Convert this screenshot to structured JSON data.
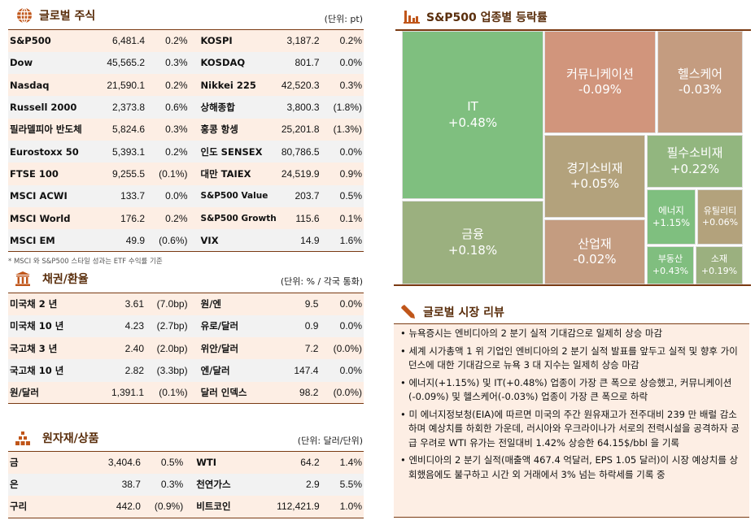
{
  "global_stocks": {
    "title": "글로벌 주식",
    "unit": "(단위: pt)",
    "icon": "globe-icon",
    "rows": [
      [
        "S&P500",
        "6,481.4",
        "0.2%",
        "KOSPI",
        "3,187.2",
        "0.2%"
      ],
      [
        "Dow",
        "45,565.2",
        "0.3%",
        "KOSDAQ",
        "801.7",
        "0.0%"
      ],
      [
        "Nasdaq",
        "21,590.1",
        "0.2%",
        "Nikkei 225",
        "42,520.3",
        "0.3%"
      ],
      [
        "Russell 2000",
        "2,373.8",
        "0.6%",
        "상해종합",
        "3,800.3",
        "(1.8%)"
      ],
      [
        "필라델피아 반도체",
        "5,824.6",
        "0.3%",
        "홍콩 항셍",
        "25,201.8",
        "(1.3%)"
      ],
      [
        "Eurostoxx 50",
        "5,393.1",
        "0.2%",
        "인도 SENSEX",
        "80,786.5",
        "0.0%"
      ],
      [
        "FTSE 100",
        "9,255.5",
        "(0.1%)",
        "대만 TAIEX",
        "24,519.9",
        "0.9%"
      ],
      [
        "MSCI ACWI",
        "133.7",
        "0.0%",
        "S&P500 Value",
        "203.7",
        "0.5%"
      ],
      [
        "MSCI World",
        "176.2",
        "0.2%",
        "S&P500 Growth",
        "115.6",
        "0.1%"
      ],
      [
        "MSCI EM",
        "49.9",
        "(0.6%)",
        "VIX",
        "14.9",
        "1.6%"
      ]
    ],
    "note": "* MSCI 와 S&P500 스타일 성과는 ETF 수익률 기준"
  },
  "bonds_fx": {
    "title": "채권/환율",
    "unit": "(단위: % / 각국 통화)",
    "icon": "bank-icon",
    "rows": [
      [
        "미국채 2 년",
        "3.61",
        "(7.0bp)",
        "원/엔",
        "9.5",
        "0.0%"
      ],
      [
        "미국채 10 년",
        "4.23",
        "(2.7bp)",
        "유로/달러",
        "0.9",
        "0.0%"
      ],
      [
        "국고채 3 년",
        "2.40",
        "(2.0bp)",
        "위안/달러",
        "7.2",
        "(0.0%)"
      ],
      [
        "국고채 10 년",
        "2.82",
        "(3.3bp)",
        "엔/달러",
        "147.4",
        "0.0%"
      ],
      [
        "원/달러",
        "1,391.1",
        "(0.1%)",
        "달러 인덱스",
        "98.2",
        "(0.0%)"
      ]
    ]
  },
  "commodities": {
    "title": "원자재/상품",
    "unit": "(단위: 달러/단위)",
    "icon": "gold-bars-icon",
    "rows": [
      [
        "금",
        "3,404.6",
        "0.5%",
        "WTI",
        "64.2",
        "1.4%"
      ],
      [
        "은",
        "38.7",
        "0.3%",
        "천연가스",
        "2.9",
        "5.5%"
      ],
      [
        "구리",
        "442.0",
        "(0.9%)",
        "비트코인",
        "112,421.9",
        "1.0%"
      ]
    ]
  },
  "sector": {
    "title": "S&P500 업종별 등락률",
    "icon": "bar-chart-icon",
    "cells": [
      {
        "name": "IT",
        "value": "+0.48%",
        "color": "#7fbf7f"
      },
      {
        "name": "금융",
        "value": "+0.18%",
        "color": "#9bb07f"
      },
      {
        "name": "커뮤니케이션",
        "value": "-0.09%",
        "color": "#d1957c"
      },
      {
        "name": "헬스케어",
        "value": "-0.03%",
        "color": "#c49c80"
      },
      {
        "name": "경기소비재",
        "value": "+0.05%",
        "color": "#b3a27c"
      },
      {
        "name": "산업재",
        "value": "-0.02%",
        "color": "#c49c80"
      },
      {
        "name": "필수소비재",
        "value": "+0.22%",
        "color": "#92b67f"
      },
      {
        "name": "에너지",
        "value": "+1.15%",
        "color": "#7fbf7f"
      },
      {
        "name": "유틸리티",
        "value": "+0.06%",
        "color": "#b3a27c"
      },
      {
        "name": "부동산",
        "value": "+0.43%",
        "color": "#80be7f"
      },
      {
        "name": "소재",
        "value": "+0.19%",
        "color": "#9bb07f"
      }
    ]
  },
  "review": {
    "title": "글로벌 시장 리뷰",
    "icon": "pen-icon",
    "items": [
      "뉴욕증시는 엔비디아의 2 분기 실적 기대감으로 일제히 상승 마감",
      "세계 시가총액 1 위 기업인 엔비디아의 2 분기 실적 발표를 앞두고 실적 및 향후 가이던스에 대한 기대감으로 뉴욕 3 대 지수는 일제히 상승 마감",
      "에너지(+1.15%) 및 IT(+0.48%) 업종이 가장 큰 폭으로 상승했고, 커뮤니케이션(-0.09%) 및 헬스케어(-0.03%) 업종이 가장 큰 폭으로 하락",
      "미 에너지정보청(EIA)에 따르면 미국의 주간 원유재고가 전주대비 239 만 배럴 감소하며 예상치를 하회한 가운데, 러시아와 우크라이나가 서로의 전력시설을 공격하자 공급 우려로 WTI 유가는 전일대비 1.42% 상승한 64.15$/bbl 을 기록",
      "엔비디아의 2 분기 실적(매출액 467.4 억달러, EPS 1.05 달러)이 시장 예상치를 상회했음에도 불구하고 시간 외 거래에서 3% 넘는 하락세를 기록 중"
    ]
  },
  "accent": "#c0561a"
}
